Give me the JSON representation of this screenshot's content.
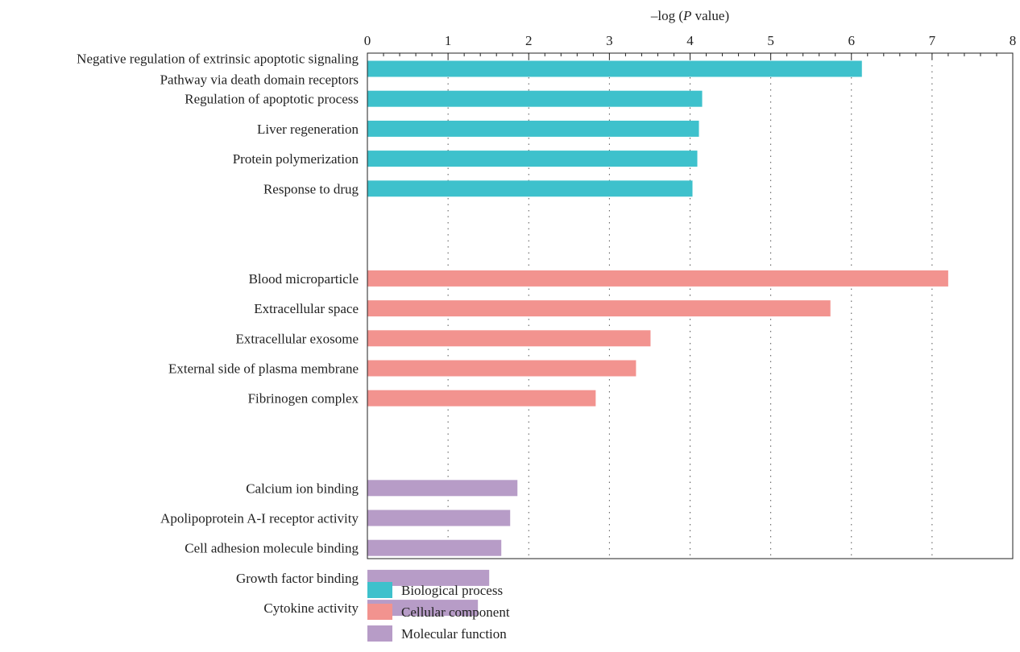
{
  "chart_data": {
    "type": "bar",
    "orientation": "horizontal",
    "x_axis_position": "top",
    "xlabel_prefix": "–log (",
    "xlabel_italic": "P",
    "xlabel_suffix": " value)",
    "xlim": [
      0,
      8
    ],
    "xticks": [
      "0",
      "1",
      "2",
      "3",
      "4",
      "5",
      "6",
      "7",
      "8"
    ],
    "grid": "vertical dotted",
    "legend_placement": "bottom",
    "categories": [
      {
        "label_lines": [
          "Negative regulation of extrinsic apoptotic signaling",
          "Pathway via death domain receptors"
        ],
        "value": 6.13,
        "group": 0
      },
      {
        "label_lines": [
          "Regulation of apoptotic process"
        ],
        "value": 4.15,
        "group": 0
      },
      {
        "label_lines": [
          "Liver regeneration"
        ],
        "value": 4.11,
        "group": 0
      },
      {
        "label_lines": [
          "Protein polymerization"
        ],
        "value": 4.09,
        "group": 0
      },
      {
        "label_lines": [
          "Response to drug"
        ],
        "value": 4.03,
        "group": 0
      },
      {
        "label_lines": [
          "Blood microparticle"
        ],
        "value": 7.2,
        "group": 1
      },
      {
        "label_lines": [
          "Extracellular space"
        ],
        "value": 5.74,
        "group": 1
      },
      {
        "label_lines": [
          "Extracellular exosome"
        ],
        "value": 3.51,
        "group": 1
      },
      {
        "label_lines": [
          "External side of plasma membrane"
        ],
        "value": 3.33,
        "group": 1
      },
      {
        "label_lines": [
          "Fibrinogen complex"
        ],
        "value": 2.83,
        "group": 1
      },
      {
        "label_lines": [
          "Calcium ion binding"
        ],
        "value": 1.86,
        "group": 2
      },
      {
        "label_lines": [
          "Apolipoprotein A-I receptor activity"
        ],
        "value": 1.77,
        "group": 2
      },
      {
        "label_lines": [
          "Cell adhesion molecule binding"
        ],
        "value": 1.66,
        "group": 2
      },
      {
        "label_lines": [
          "Growth factor binding"
        ],
        "value": 1.51,
        "group": 2
      },
      {
        "label_lines": [
          "Cytokine activity"
        ],
        "value": 1.37,
        "group": 2
      }
    ],
    "groups": [
      {
        "name": "Biological process",
        "color": "#3ec1cc"
      },
      {
        "name": "Cellular component",
        "color": "#f2938f"
      },
      {
        "name": "Molecular function",
        "color": "#b79cc7"
      }
    ]
  }
}
